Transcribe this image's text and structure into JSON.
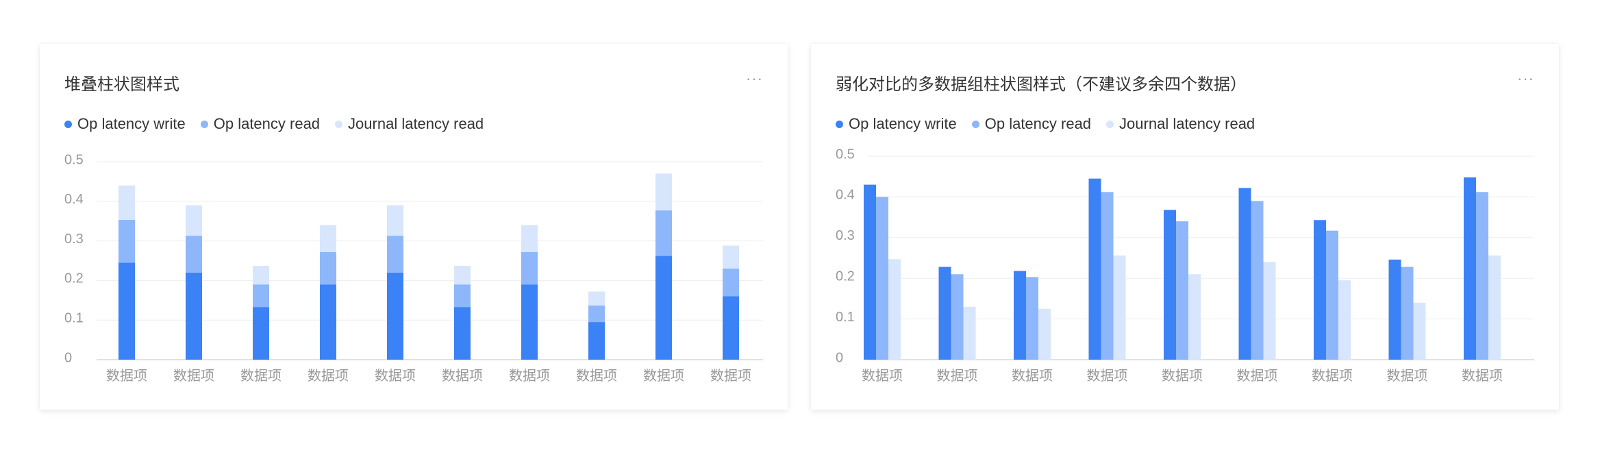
{
  "colors": {
    "series": [
      "#3b82f6",
      "#8db7fa",
      "#d8e6fd"
    ],
    "grid": "#eeeeee",
    "axis": "#d9d9d9",
    "tick_text": "#999999"
  },
  "icons": {
    "more": "more-icon"
  },
  "cards": [
    {
      "title": "堆叠柱状图样式",
      "more_label": "···"
    },
    {
      "title": "弱化对比的多数据组柱状图样式（不建议多余四个数据）",
      "more_label": "···"
    }
  ],
  "chart_data": [
    {
      "type": "bar",
      "stacked": true,
      "title": "堆叠柱状图样式",
      "categories": [
        "数据项",
        "数据项",
        "数据项",
        "数据项",
        "数据项",
        "数据项",
        "数据项",
        "数据项",
        "数据项",
        "数据项"
      ],
      "series": [
        {
          "name": "Op latency write",
          "values": [
            0.245,
            0.22,
            0.133,
            0.19,
            0.22,
            0.133,
            0.19,
            0.095,
            0.262,
            0.16
          ]
        },
        {
          "name": "Op latency read",
          "values": [
            0.108,
            0.093,
            0.057,
            0.082,
            0.093,
            0.057,
            0.082,
            0.042,
            0.115,
            0.07
          ]
        },
        {
          "name": "Journal latency read",
          "values": [
            0.087,
            0.077,
            0.047,
            0.068,
            0.077,
            0.047,
            0.068,
            0.035,
            0.093,
            0.058
          ]
        }
      ],
      "yticks": [
        "0",
        "0.1",
        "0.2",
        "0.3",
        "0.4",
        "0.5"
      ],
      "ylim": [
        0,
        0.5
      ],
      "legend_position": "top-left",
      "grid": true
    },
    {
      "type": "bar",
      "stacked": false,
      "title": "弱化对比的多数据组柱状图样式（不建议多余四个数据）",
      "categories": [
        "数据项",
        "数据项",
        "数据项",
        "数据项",
        "数据项",
        "数据项",
        "数据项",
        "数据项",
        "数据项"
      ],
      "series": [
        {
          "name": "Op latency write",
          "values": [
            0.43,
            0.228,
            0.218,
            0.445,
            0.368,
            0.422,
            0.343,
            0.246,
            0.448
          ]
        },
        {
          "name": "Op latency read",
          "values": [
            0.4,
            0.21,
            0.203,
            0.412,
            0.34,
            0.39,
            0.317,
            0.228,
            0.412
          ]
        },
        {
          "name": "Journal latency read",
          "values": [
            0.247,
            0.13,
            0.125,
            0.256,
            0.21,
            0.24,
            0.195,
            0.14,
            0.256
          ]
        }
      ],
      "yticks": [
        "0",
        "0.1",
        "0.2",
        "0.3",
        "0.4",
        "0.5"
      ],
      "ylim": [
        0,
        0.5
      ],
      "legend_position": "top-left",
      "grid": true
    }
  ]
}
